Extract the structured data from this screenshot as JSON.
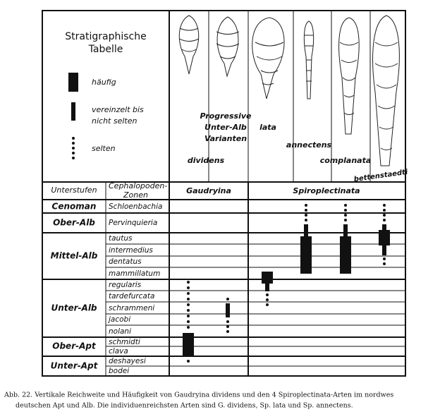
{
  "legend": {
    "title": [
      "Stratigraphische",
      "Tabelle"
    ],
    "items": [
      "häufig",
      [
        "vereinzelt bis",
        "nicht selten"
      ],
      "selten"
    ]
  },
  "species": [
    "dividens",
    [
      "Progressive",
      "Unter-Alb",
      "Varianten"
    ],
    "lata",
    "annectens",
    "complanata",
    "bettenstaedti"
  ],
  "header": [
    "Unterstufen",
    [
      "Cephalopoden-",
      "Zonen"
    ],
    "Gaudryina",
    "Spiroplectinata"
  ],
  "stages": [
    {
      "name": "Cenoman",
      "zones": [
        "Schloenbachia"
      ]
    },
    {
      "name": "Ober-Alb",
      "zones": [
        "Pervinquieria"
      ]
    },
    {
      "name": "Mittel-Alb",
      "zones": [
        "tautus",
        "intermedius",
        "dentatus",
        "mammillatum"
      ]
    },
    {
      "name": "Unter-Alb",
      "zones": [
        "regularis",
        "tardefurcata",
        "schrammeni",
        "jacobi",
        "nolani"
      ]
    },
    {
      "name": "Ober-Apt",
      "zones": [
        "schmidti",
        "clava"
      ]
    },
    {
      "name": "Unter-Apt",
      "zones": [
        "deshayesi",
        "bodei"
      ]
    }
  ],
  "caption": [
    "Abb. 22. Vertikale Reichweite und Häufigkeit von Gaudryina dividens und den 4 Spiroplectinata-Arten im nordwes",
    "deutschen Apt und Alb. Die individuenreichsten Arten sind G. dividens, Sp. lata und Sp. annectens."
  ]
}
